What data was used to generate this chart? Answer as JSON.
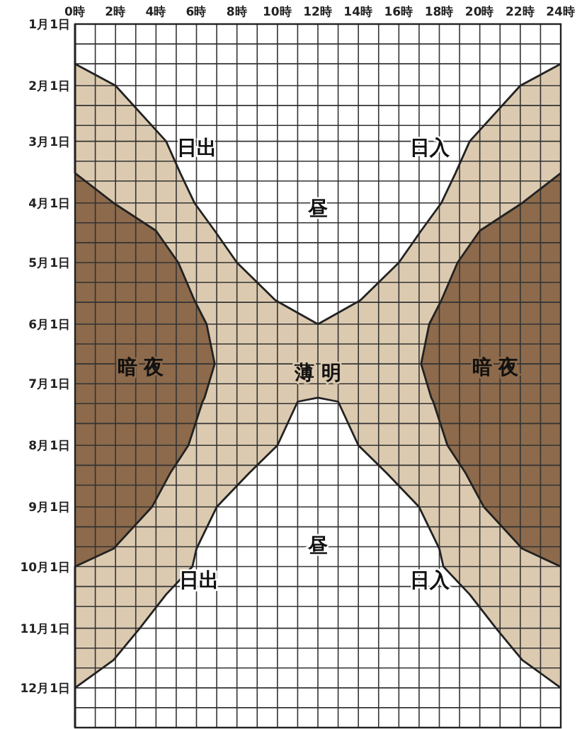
{
  "chart_data": {
    "type": "area",
    "orientation": "horizontal",
    "stacked": true,
    "x": [
      "--01-01",
      "--01-21",
      "--02-01",
      "--03-01",
      "--03-17",
      "--04-01",
      "--04-15",
      "--05-01",
      "--05-20",
      "--06-01",
      "--06-21",
      "--07-08",
      "--07-10",
      "--08-01",
      "--08-15",
      "--09-01",
      "--09-22",
      "--10-01",
      "--10-15",
      "--11-01",
      "--11-17",
      "--12-01",
      "--12-21"
    ],
    "series": [
      {
        "color": "#8c6a4b",
        "values": [
          0,
          0,
          0,
          0,
          0,
          1.9,
          4.0,
          5.1,
          5.9,
          6.5,
          6.9,
          6.4,
          6.3,
          5.6,
          4.7,
          3.8,
          1.9,
          0,
          0,
          0,
          0,
          0,
          0
        ]
      },
      {
        "color": "#dccab0",
        "values": [
          0,
          0,
          2.0,
          4.5,
          5.2,
          4.0,
          2.9,
          2.9,
          4.0,
          5.5,
          5.1,
          5.6,
          4.7,
          4.4,
          3.9,
          3.2,
          4.1,
          5.8,
          4.5,
          3.2,
          1.9,
          0,
          0
        ]
      },
      {
        "color": "#ffffff",
        "values": [
          24,
          24,
          20.0,
          15.0,
          13.6,
          12.2,
          10.2,
          8.0,
          4.2,
          0,
          0,
          0,
          2.0,
          4.0,
          6.8,
          10.0,
          12.0,
          12.4,
          15.0,
          17.6,
          20.2,
          24,
          24
        ]
      },
      {
        "color": "#dccab0",
        "values": [
          0,
          0,
          2.0,
          4.5,
          5.2,
          4.0,
          2.9,
          2.9,
          4.0,
          5.5,
          5.1,
          5.6,
          4.7,
          4.4,
          3.9,
          3.2,
          4.1,
          5.8,
          4.5,
          3.2,
          1.9,
          0,
          0
        ]
      },
      {
        "color": "#8c6a4b",
        "values": [
          0,
          0,
          0,
          0,
          0,
          1.9,
          4.0,
          5.1,
          5.9,
          6.5,
          6.9,
          6.4,
          6.3,
          5.6,
          4.7,
          3.8,
          1.9,
          0,
          0,
          0,
          0,
          0,
          0
        ]
      }
    ],
    "xlim": [
      0,
      24
    ],
    "xticks": [
      {
        "value": 0,
        "label": "0時"
      },
      {
        "value": 1,
        "label": null
      },
      {
        "value": 2,
        "label": "2時"
      },
      {
        "value": 3,
        "label": null
      },
      {
        "value": 4,
        "label": "4時"
      },
      {
        "value": 5,
        "label": null
      },
      {
        "value": 6,
        "label": "6時"
      },
      {
        "value": 7,
        "label": null
      },
      {
        "value": 8,
        "label": "8時"
      },
      {
        "value": 9,
        "label": null
      },
      {
        "value": 10,
        "label": "10時"
      },
      {
        "value": 11,
        "label": null
      },
      {
        "value": 12,
        "label": "12時"
      },
      {
        "value": 13,
        "label": null
      },
      {
        "value": 14,
        "label": "14時"
      },
      {
        "value": 15,
        "label": null
      },
      {
        "value": 16,
        "label": "16時"
      },
      {
        "value": 17,
        "label": null
      },
      {
        "value": 18,
        "label": "18時"
      },
      {
        "value": 19,
        "label": null
      },
      {
        "value": 20,
        "label": "20時"
      },
      {
        "value": 21,
        "label": null
      },
      {
        "value": 22,
        "label": "22時"
      },
      {
        "value": 23,
        "label": null
      },
      {
        "value": 24,
        "label": "24時"
      }
    ],
    "ylim": [
      "--12-21",
      "--01-01"
    ],
    "yticks": [
      {
        "value": "--01-01",
        "label": "1月1日"
      },
      {
        "value": "--01-11",
        "label": null
      },
      {
        "value": "--01-21",
        "label": null
      },
      {
        "value": "--02-01",
        "label": "2月1日"
      },
      {
        "value": "--02-11",
        "label": null
      },
      {
        "value": "--02-21",
        "label": null
      },
      {
        "value": "--03-01",
        "label": "3月1日"
      },
      {
        "value": "--03-11",
        "label": null
      },
      {
        "value": "--03-21",
        "label": null
      },
      {
        "value": "--04-01",
        "label": "4月1日"
      },
      {
        "value": "--04-11",
        "label": null
      },
      {
        "value": "--04-21",
        "label": null
      },
      {
        "value": "--05-01",
        "label": "5月1日"
      },
      {
        "value": "--05-11",
        "label": null
      },
      {
        "value": "--05-21",
        "label": null
      },
      {
        "value": "--06-01",
        "label": "6月1日"
      },
      {
        "value": "--06-11",
        "label": null
      },
      {
        "value": "--06-21",
        "label": null
      },
      {
        "value": "--07-01",
        "label": "7月1日"
      },
      {
        "value": "--07-11",
        "label": null
      },
      {
        "value": "--07-21",
        "label": null
      },
      {
        "value": "--08-01",
        "label": "8月1日"
      },
      {
        "value": "--08-11",
        "label": null
      },
      {
        "value": "--08-21",
        "label": null
      },
      {
        "value": "--09-01",
        "label": "9月1日"
      },
      {
        "value": "--09-11",
        "label": null
      },
      {
        "value": "--09-21",
        "label": null
      },
      {
        "value": "--10-01",
        "label": "10月1日"
      },
      {
        "value": "--10-11",
        "label": null
      },
      {
        "value": "--10-21",
        "label": null
      },
      {
        "value": "--11-01",
        "label": "11月1日"
      },
      {
        "value": "--11-11",
        "label": null
      },
      {
        "value": "--11-21",
        "label": null
      },
      {
        "value": "--12-01",
        "label": "12月1日"
      },
      {
        "value": "--12-11",
        "label": null
      },
      {
        "value": "--12-21",
        "label": null
      }
    ],
    "grid": true,
    "annotations": [
      "日出",
      "日入",
      "昼",
      "暗 夜",
      "薄 明",
      "暗 夜",
      "昼",
      "日出",
      "日入"
    ]
  }
}
